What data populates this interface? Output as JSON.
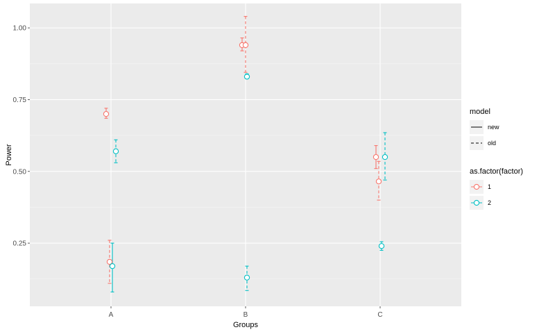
{
  "chart_data": {
    "type": "scatter",
    "xlabel": "Groups",
    "ylabel": "Power",
    "categories": [
      "A",
      "B",
      "C"
    ],
    "ylim": [
      0.03,
      1.085
    ],
    "yticks": [
      0.25,
      0.5,
      0.75,
      1.0
    ],
    "ytick_labels": [
      "0.25",
      "0.50",
      "0.75",
      "1.00"
    ],
    "grid": true,
    "legend_position": "right",
    "legends": [
      {
        "title": "model",
        "entries": [
          {
            "label": "new",
            "linetype": "solid"
          },
          {
            "label": "old",
            "linetype": "dashed"
          }
        ]
      },
      {
        "title": "as.factor(factor)",
        "entries": [
          {
            "label": "1",
            "color": "#f8766d"
          },
          {
            "label": "2",
            "color": "#00bfc4"
          }
        ]
      }
    ],
    "points": [
      {
        "group": "A",
        "factor": "1",
        "model": "new",
        "y": 0.7,
        "ymin": 0.685,
        "ymax": 0.72
      },
      {
        "group": "A",
        "factor": "2",
        "model": "old",
        "y": 0.57,
        "ymin": 0.53,
        "ymax": 0.61
      },
      {
        "group": "A",
        "factor": "1",
        "model": "old",
        "y": 0.185,
        "ymin": 0.11,
        "ymax": 0.26
      },
      {
        "group": "A",
        "factor": "2",
        "model": "new",
        "y": 0.17,
        "ymin": 0.08,
        "ymax": 0.25
      },
      {
        "group": "B",
        "factor": "1",
        "model": "new",
        "y": 0.94,
        "ymin": 0.92,
        "ymax": 0.965
      },
      {
        "group": "B",
        "factor": "1",
        "model": "old",
        "y": 0.94,
        "ymin": 0.845,
        "ymax": 1.04
      },
      {
        "group": "B",
        "factor": "2",
        "model": "new",
        "y": 0.83,
        "ymin": 0.825,
        "ymax": 0.84
      },
      {
        "group": "B",
        "factor": "2",
        "model": "old",
        "y": 0.13,
        "ymin": 0.085,
        "ymax": 0.17
      },
      {
        "group": "C",
        "factor": "1",
        "model": "new",
        "y": 0.55,
        "ymin": 0.51,
        "ymax": 0.59
      },
      {
        "group": "C",
        "factor": "1",
        "model": "old",
        "y": 0.465,
        "ymin": 0.4,
        "ymax": 0.535
      },
      {
        "group": "C",
        "factor": "2",
        "model": "old",
        "y": 0.55,
        "ymin": 0.47,
        "ymax": 0.635
      },
      {
        "group": "C",
        "factor": "2",
        "model": "new",
        "y": 0.24,
        "ymin": 0.225,
        "ymax": 0.255
      }
    ]
  }
}
